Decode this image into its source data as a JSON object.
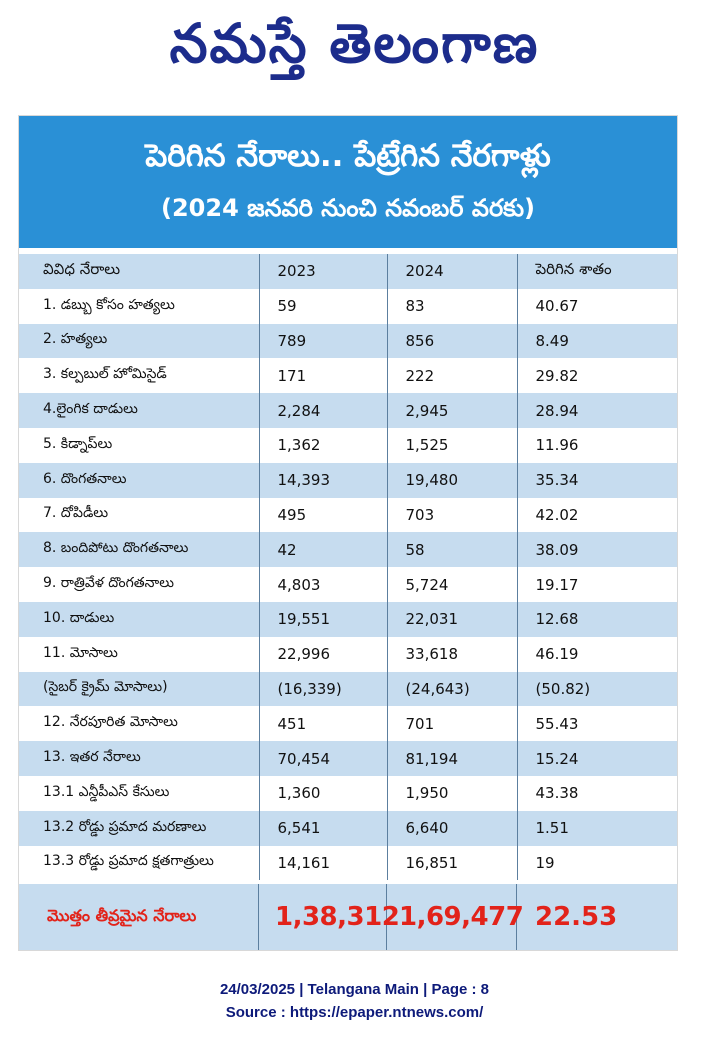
{
  "masthead": {
    "logo_text": "నమస్తే తెలంగాణ"
  },
  "banner": {
    "title": "పెరిగిన నేరాలు.. పేట్రేగిన నేరగాళ్లు",
    "subtitle": "(2024 జనవరి నుంచి నవంబర్ వరకు)"
  },
  "table": {
    "headers": [
      "వివిధ నేరాలు",
      "2023",
      "2024",
      "పెరిగిన శాతం"
    ],
    "rows": [
      [
        "1. డబ్బు కోసం హత్యలు",
        "59",
        "83",
        "40.67"
      ],
      [
        "2. హత్యలు",
        "789",
        "856",
        "8.49"
      ],
      [
        "3. కల్పబుల్ హోమిసైడ్",
        "171",
        "222",
        "29.82"
      ],
      [
        "4.లైంగిక దాడులు",
        "2,284",
        "2,945",
        "28.94"
      ],
      [
        "5. కిడ్నాప్‌లు",
        "1,362",
        "1,525",
        "11.96"
      ],
      [
        "6. దొంగతనాలు",
        "14,393",
        "19,480",
        "35.34"
      ],
      [
        "7. దోపిడీలు",
        "495",
        "703",
        "42.02"
      ],
      [
        "8. బందిపోటు దొంగతనాలు",
        "42",
        "58",
        "38.09"
      ],
      [
        "9. రాత్రివేళ దొంగతనాలు",
        "4,803",
        "5,724",
        "19.17"
      ],
      [
        "10. దాడులు",
        "19,551",
        "22,031",
        "12.68"
      ],
      [
        "11. మోసాలు",
        "22,996",
        "33,618",
        "46.19"
      ],
      [
        "(సైబర్ క్రైమ్ మోసాలు)",
        "(16,339)",
        "(24,643)",
        "(50.82)"
      ],
      [
        "12. నేరపూరిత మోసాలు",
        "451",
        "701",
        "55.43"
      ],
      [
        "13. ఇతర నేరాలు",
        "70,454",
        "81,194",
        "15.24"
      ],
      [
        "13.1 ఎన్డీపీఎస్ కేసులు",
        "1,360",
        "1,950",
        "43.38"
      ],
      [
        "13.2 రోడ్డు ప్రమాద మరణాలు",
        "6,541",
        "6,640",
        "1.51"
      ],
      [
        "13.3 రోడ్డు ప్రమాద క్షతగాత్రులు",
        "14,161",
        "16,851",
        "19"
      ]
    ],
    "total": {
      "label": "మొత్తం తీవ్రమైన నేరాలు",
      "v2023": "1,38,312",
      "v2024": "1,69,477",
      "pct": "22.53"
    }
  },
  "footer": {
    "line1": "24/03/2025 | Telangana Main | Page : 8",
    "line2": "Source : https://epaper.ntnews.com/"
  },
  "colors": {
    "banner_bg": "#2a90d6",
    "row_shade": "#c6dcef",
    "total_text": "#e2231a",
    "masthead": "#1c2c8c"
  }
}
